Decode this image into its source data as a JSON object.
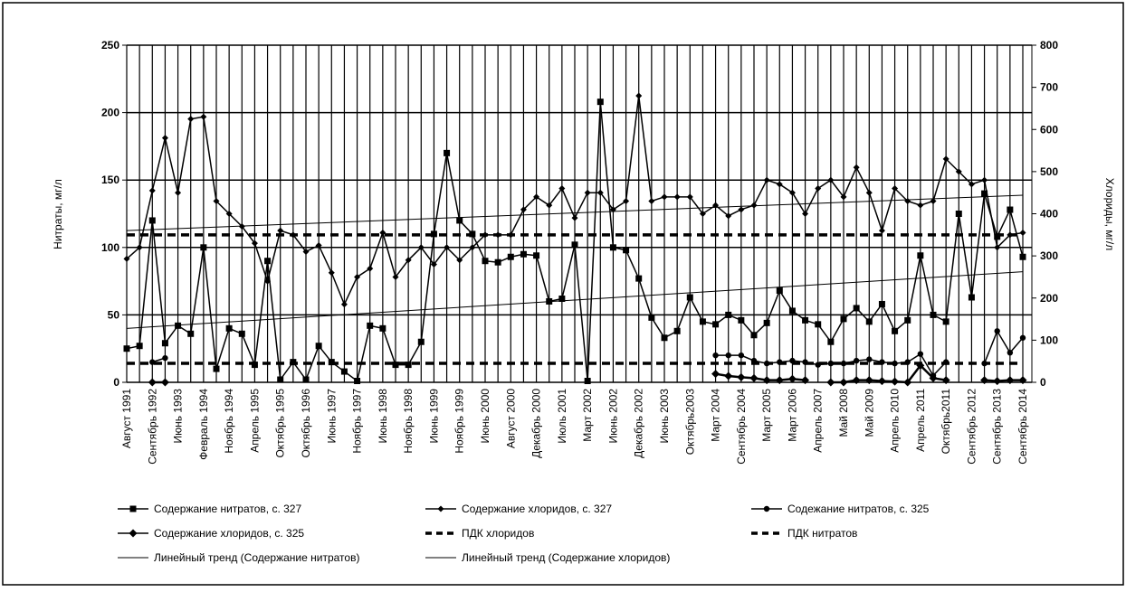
{
  "chart_data": {
    "type": "line",
    "ylabel": "Нитраты, мг/л",
    "y2label": "Хлориды, мг/л",
    "ylim": [
      0,
      250
    ],
    "yticks": [
      0,
      50,
      100,
      150,
      200,
      250
    ],
    "y2lim": [
      0,
      800
    ],
    "y2ticks": [
      0,
      100,
      200,
      300,
      400,
      500,
      600,
      700,
      800
    ],
    "grid": true,
    "legend": "bottom",
    "categories": [
      "Август 1991",
      null,
      "Сентябрь 1992",
      null,
      "Июнь 1993",
      null,
      "Февраль 1994",
      null,
      "Ноябрь 1994",
      null,
      "Апрель 1995",
      null,
      "Октябрь 1995",
      null,
      "Октябрь 1996",
      null,
      "Июнь 1997",
      null,
      "Ноябрь 1997",
      null,
      "Июнь 1998",
      null,
      "Ноябрь 1998",
      null,
      "Июнь 1999",
      null,
      "Ноябрь 1999",
      null,
      "Июнь 2000",
      null,
      "Август 2000",
      null,
      "Декабрь 2000",
      null,
      "Июль 2001",
      null,
      "Март 2002",
      null,
      "Июнь 2002",
      null,
      "Декабрь 2002",
      null,
      "Июнь 2003",
      null,
      "Октябрь2003",
      null,
      "Март 2004",
      null,
      "Сентябрь 2004",
      null,
      "Март 2005",
      null,
      "Март 2006",
      null,
      "Апрель 2007",
      null,
      "Май 2008",
      null,
      "Май 2009",
      null,
      "Апрель 2010",
      null,
      "Апрель 2011",
      null,
      "Октябрь2011",
      null,
      "Сентябрь 2012",
      null,
      "Сентябрь 2013",
      null,
      "Сентябрь 2014"
    ],
    "series": [
      {
        "name": "Содержание нитратов, с. 327",
        "color": "#000000",
        "marker": "square",
        "axis": "y",
        "values": [
          25,
          27,
          120,
          29,
          42,
          36,
          100,
          10,
          40,
          36,
          13,
          90,
          2,
          15,
          2,
          27,
          15,
          8,
          1,
          42,
          40,
          13,
          13,
          30,
          110,
          170,
          120,
          110,
          90,
          89,
          93,
          95,
          94,
          60,
          62,
          102,
          1,
          208,
          100,
          98,
          77,
          48,
          33,
          38,
          63,
          45,
          43,
          50,
          46,
          35,
          44,
          68,
          53,
          46,
          43,
          30,
          47,
          55,
          45,
          58,
          38,
          46,
          94,
          50,
          45,
          125,
          63,
          140,
          108,
          128,
          93
        ]
      },
      {
        "name": "Содержание хлоридов, с. 327",
        "color": "#000000",
        "marker": "diamond",
        "axis": "y2",
        "values": [
          293,
          320,
          455,
          580,
          450,
          625,
          630,
          430,
          400,
          370,
          330,
          240,
          360,
          350,
          310,
          325,
          260,
          185,
          250,
          270,
          355,
          250,
          290,
          320,
          280,
          320,
          290,
          320,
          350,
          350,
          350,
          410,
          440,
          420,
          460,
          390,
          450,
          450,
          410,
          430,
          680,
          430,
          440,
          440,
          440,
          400,
          420,
          395,
          410,
          420,
          480,
          470,
          450,
          400,
          460,
          480,
          440,
          510,
          450,
          360,
          460,
          430,
          420,
          430,
          530,
          500,
          470,
          480,
          320,
          350,
          355
        ]
      },
      {
        "name": "Содежание нитратов, с. 325",
        "color": "#000000",
        "marker": "circle",
        "axis": "y",
        "values": [
          null,
          null,
          15,
          18,
          null,
          null,
          null,
          null,
          null,
          null,
          null,
          null,
          null,
          null,
          null,
          null,
          null,
          null,
          null,
          null,
          null,
          null,
          null,
          null,
          null,
          null,
          null,
          null,
          null,
          null,
          null,
          null,
          null,
          null,
          null,
          null,
          null,
          null,
          null,
          null,
          null,
          null,
          null,
          null,
          null,
          null,
          20,
          20,
          20,
          16,
          14,
          15,
          16,
          15,
          13,
          14,
          14,
          16,
          17,
          15,
          14,
          15,
          21,
          5,
          15,
          null,
          null,
          14,
          38,
          22,
          33
        ]
      },
      {
        "name": "Содержание хлоридов, с. 325",
        "color": "#000000",
        "marker": "bigdiamond",
        "axis": "y2",
        "values": [
          null,
          null,
          0,
          0,
          null,
          null,
          null,
          null,
          null,
          null,
          null,
          null,
          null,
          null,
          null,
          null,
          null,
          null,
          null,
          null,
          null,
          null,
          null,
          null,
          null,
          null,
          null,
          null,
          null,
          null,
          null,
          null,
          null,
          null,
          null,
          null,
          null,
          null,
          null,
          null,
          null,
          null,
          null,
          null,
          null,
          null,
          20,
          15,
          12,
          10,
          5,
          5,
          8,
          5,
          null,
          0,
          0,
          5,
          5,
          3,
          2,
          0,
          40,
          10,
          5,
          null,
          null,
          5,
          3,
          5,
          5
        ]
      }
    ],
    "reference_lines": [
      {
        "name": "ПДК хлоридов",
        "value": 350,
        "axis": "y2"
      },
      {
        "name": "ПДК нитратов",
        "value": 45,
        "axis": "y2"
      }
    ],
    "trends": [
      {
        "name": "Линейный тренд (Содержание нитратов)",
        "values": [
          40,
          82
        ],
        "axis": "y"
      },
      {
        "name": "Линейный тренд (Содержание хлоридов)",
        "values": [
          360,
          444
        ],
        "axis": "y2"
      }
    ]
  }
}
